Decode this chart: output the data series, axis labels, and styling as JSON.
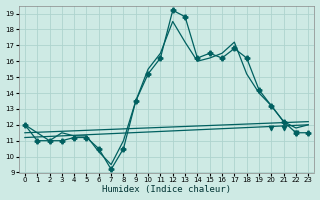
{
  "xlabel": "Humidex (Indice chaleur)",
  "bg_color": "#ceeae4",
  "grid_color": "#aed4ce",
  "line_color": "#006060",
  "xlim": [
    -0.5,
    23.5
  ],
  "ylim": [
    9,
    19.5
  ],
  "xticks": [
    0,
    1,
    2,
    3,
    4,
    5,
    6,
    7,
    8,
    9,
    10,
    11,
    12,
    13,
    14,
    15,
    16,
    17,
    18,
    19,
    20,
    21,
    22,
    23
  ],
  "yticks": [
    9,
    10,
    11,
    12,
    13,
    14,
    15,
    16,
    17,
    18,
    19
  ],
  "series": [
    {
      "x": [
        0,
        23
      ],
      "y": [
        11.5,
        12.2
      ],
      "marker": null,
      "linestyle": "-"
    },
    {
      "x": [
        0,
        23
      ],
      "y": [
        11.2,
        12.0
      ],
      "marker": null,
      "linestyle": "-"
    },
    {
      "x": [
        0,
        1,
        2,
        3,
        4,
        5,
        6,
        7,
        8,
        9,
        10,
        11,
        12,
        13,
        14,
        15,
        16,
        17,
        18,
        19,
        20,
        21,
        22,
        23
      ],
      "y": [
        12,
        11,
        11,
        11,
        11.2,
        11.2,
        10.5,
        9.2,
        10.5,
        13.5,
        15.2,
        16.2,
        19.2,
        18.8,
        16.2,
        16.5,
        16.2,
        16.8,
        16.2,
        14.2,
        13.2,
        12.2,
        11.5,
        11.5
      ],
      "marker": "P",
      "linestyle": "-"
    },
    {
      "x": [
        0,
        1,
        2,
        3,
        4,
        5,
        6,
        7,
        8,
        9,
        10,
        11,
        12,
        13,
        14,
        15,
        16,
        17,
        18,
        19,
        20,
        21,
        22,
        23
      ],
      "y": [
        12,
        11.5,
        11,
        11.5,
        11.3,
        11.3,
        10.3,
        9.5,
        11,
        13.5,
        15.5,
        16.5,
        18.5,
        17.2,
        16.0,
        16.2,
        16.5,
        17.2,
        15.2,
        14.0,
        13.2,
        12.2,
        11.8,
        12.0
      ],
      "marker": null,
      "linestyle": "-"
    },
    {
      "x": [
        20,
        21,
        22
      ],
      "y": [
        11.8,
        11.8,
        11.5
      ],
      "marker": "v",
      "linestyle": "none"
    }
  ]
}
